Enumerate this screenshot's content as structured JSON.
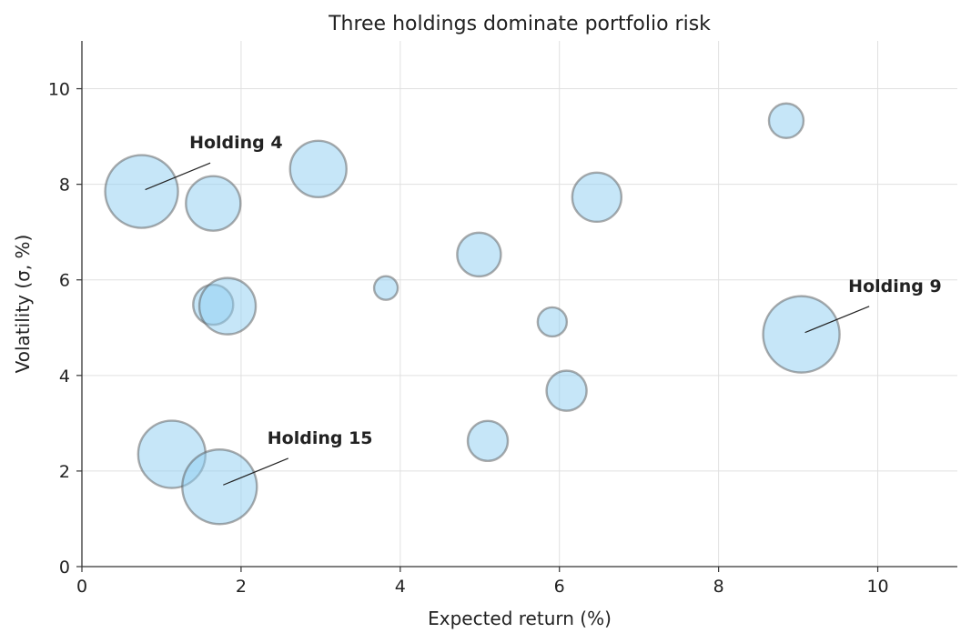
{
  "chart_data": {
    "type": "scatter",
    "title": "Three holdings dominate portfolio risk",
    "xlabel": "Expected return (%)",
    "ylabel": "Volatility (σ, %)",
    "xlim": [
      0,
      11
    ],
    "ylim": [
      0,
      11
    ],
    "xticks": [
      0,
      2,
      4,
      6,
      8,
      10
    ],
    "yticks": [
      0,
      2,
      4,
      6,
      8,
      10
    ],
    "grid": true,
    "bubble_color": "#8ecdf2",
    "bubble_edge_color": "#5a5a5a",
    "points": [
      {
        "x": 0.75,
        "y": 7.85,
        "size": 40
      },
      {
        "x": 1.65,
        "y": 7.6,
        "size": 30
      },
      {
        "x": 2.97,
        "y": 8.32,
        "size": 31
      },
      {
        "x": 6.47,
        "y": 7.73,
        "size": 27
      },
      {
        "x": 8.85,
        "y": 9.33,
        "size": 19
      },
      {
        "x": 4.99,
        "y": 6.53,
        "size": 24
      },
      {
        "x": 3.82,
        "y": 5.83,
        "size": 13
      },
      {
        "x": 1.65,
        "y": 5.48,
        "size": 22
      },
      {
        "x": 1.83,
        "y": 5.45,
        "size": 31
      },
      {
        "x": 5.91,
        "y": 5.12,
        "size": 16
      },
      {
        "x": 9.04,
        "y": 4.86,
        "size": 42
      },
      {
        "x": 6.09,
        "y": 3.68,
        "size": 22
      },
      {
        "x": 5.1,
        "y": 2.63,
        "size": 22
      },
      {
        "x": 1.13,
        "y": 2.35,
        "size": 37
      },
      {
        "x": 1.73,
        "y": 1.67,
        "size": 41
      }
    ],
    "annotations": [
      {
        "text": "Holding 4",
        "x": 0.75,
        "y": 7.85,
        "text_x": 1.35,
        "text_y": 8.75
      },
      {
        "text": "Holding 9",
        "x": 9.04,
        "y": 4.86,
        "text_x": 9.63,
        "text_y": 5.75
      },
      {
        "text": "Holding 15",
        "x": 1.73,
        "y": 1.67,
        "text_x": 2.33,
        "text_y": 2.57
      }
    ]
  }
}
